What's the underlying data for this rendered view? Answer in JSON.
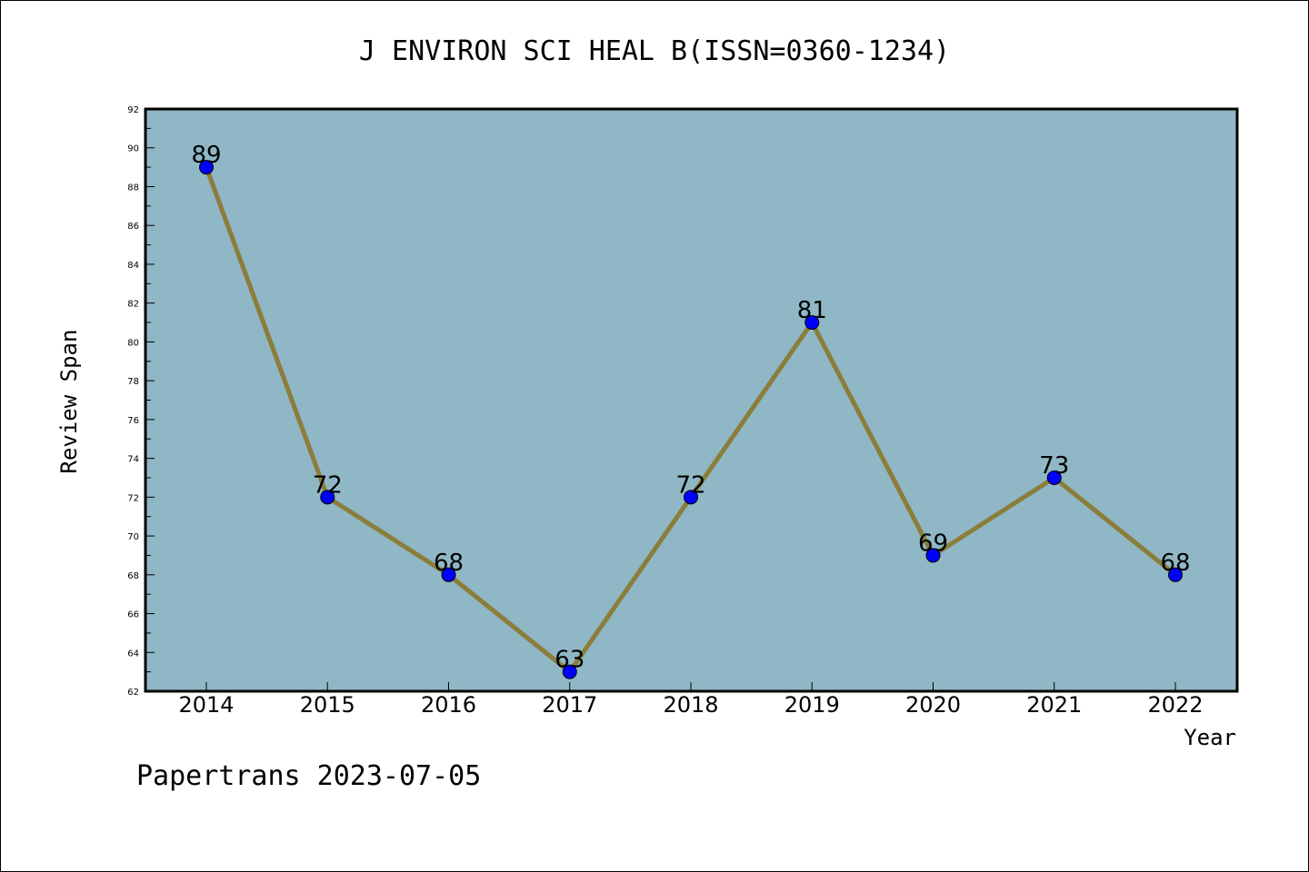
{
  "chart_data": {
    "type": "line",
    "title": "J ENVIRON SCI HEAL B(ISSN=0360-1234)",
    "xlabel": "Year",
    "ylabel": "Review Span",
    "categories": [
      "2014",
      "2015",
      "2016",
      "2017",
      "2018",
      "2019",
      "2020",
      "2021",
      "2022"
    ],
    "series": [
      {
        "values": [
          89,
          72,
          68,
          63,
          72,
          81,
          69,
          73,
          68
        ]
      }
    ],
    "ylim": [
      62,
      92
    ],
    "yticks": [
      62,
      64,
      66,
      68,
      70,
      72,
      74,
      76,
      78,
      80,
      82,
      84,
      86,
      88,
      90,
      92
    ],
    "grid": false,
    "data_labels": true,
    "colors": {
      "plot_background": "#8fb7c5",
      "line": "#8b7d3a",
      "marker": "#0000ff"
    }
  },
  "footer": "Papertrans 2023-07-05"
}
